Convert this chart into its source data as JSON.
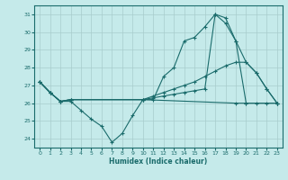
{
  "xlabel": "Humidex (Indice chaleur)",
  "bg_color": "#c5eaea",
  "grid_color": "#a8cccc",
  "line_color": "#1a6b6b",
  "xlim": [
    -0.5,
    23.5
  ],
  "ylim": [
    23.5,
    31.5
  ],
  "yticks": [
    24,
    25,
    26,
    27,
    28,
    29,
    30,
    31
  ],
  "xticks": [
    0,
    1,
    2,
    3,
    4,
    5,
    6,
    7,
    8,
    9,
    10,
    11,
    12,
    13,
    14,
    15,
    16,
    17,
    18,
    19,
    20,
    21,
    22,
    23
  ],
  "line1_x": [
    0,
    1,
    2,
    3,
    4,
    5,
    6,
    7,
    8,
    9,
    10,
    11,
    12,
    13,
    14,
    15,
    16,
    17,
    18,
    19,
    20,
    21,
    22,
    23
  ],
  "line1_y": [
    27.2,
    26.6,
    26.1,
    26.1,
    25.6,
    25.1,
    24.7,
    23.8,
    24.3,
    25.3,
    26.2,
    26.2,
    27.5,
    28.0,
    29.5,
    29.7,
    30.3,
    31.0,
    30.5,
    29.5,
    28.3,
    27.7,
    26.8,
    26.0
  ],
  "line2_x": [
    0,
    1,
    2,
    3,
    10,
    11,
    12,
    13,
    14,
    15,
    16,
    17,
    18,
    19,
    20,
    21,
    22,
    23
  ],
  "line2_y": [
    27.2,
    26.6,
    26.1,
    26.2,
    26.2,
    26.4,
    26.6,
    26.8,
    27.0,
    27.2,
    27.5,
    27.8,
    28.1,
    28.3,
    28.3,
    27.7,
    26.8,
    26.0
  ],
  "line3_x": [
    0,
    1,
    2,
    3,
    10,
    11,
    12,
    13,
    14,
    15,
    16,
    17,
    18,
    19,
    20,
    21,
    22,
    23
  ],
  "line3_y": [
    27.2,
    26.6,
    26.1,
    26.2,
    26.2,
    26.3,
    26.4,
    26.5,
    26.6,
    26.7,
    26.8,
    31.0,
    30.8,
    29.5,
    26.0,
    26.0,
    26.0,
    26.0
  ],
  "line4_x": [
    0,
    1,
    2,
    3,
    10,
    19,
    20,
    23
  ],
  "line4_y": [
    27.2,
    26.6,
    26.1,
    26.2,
    26.2,
    26.0,
    26.0,
    26.0
  ]
}
